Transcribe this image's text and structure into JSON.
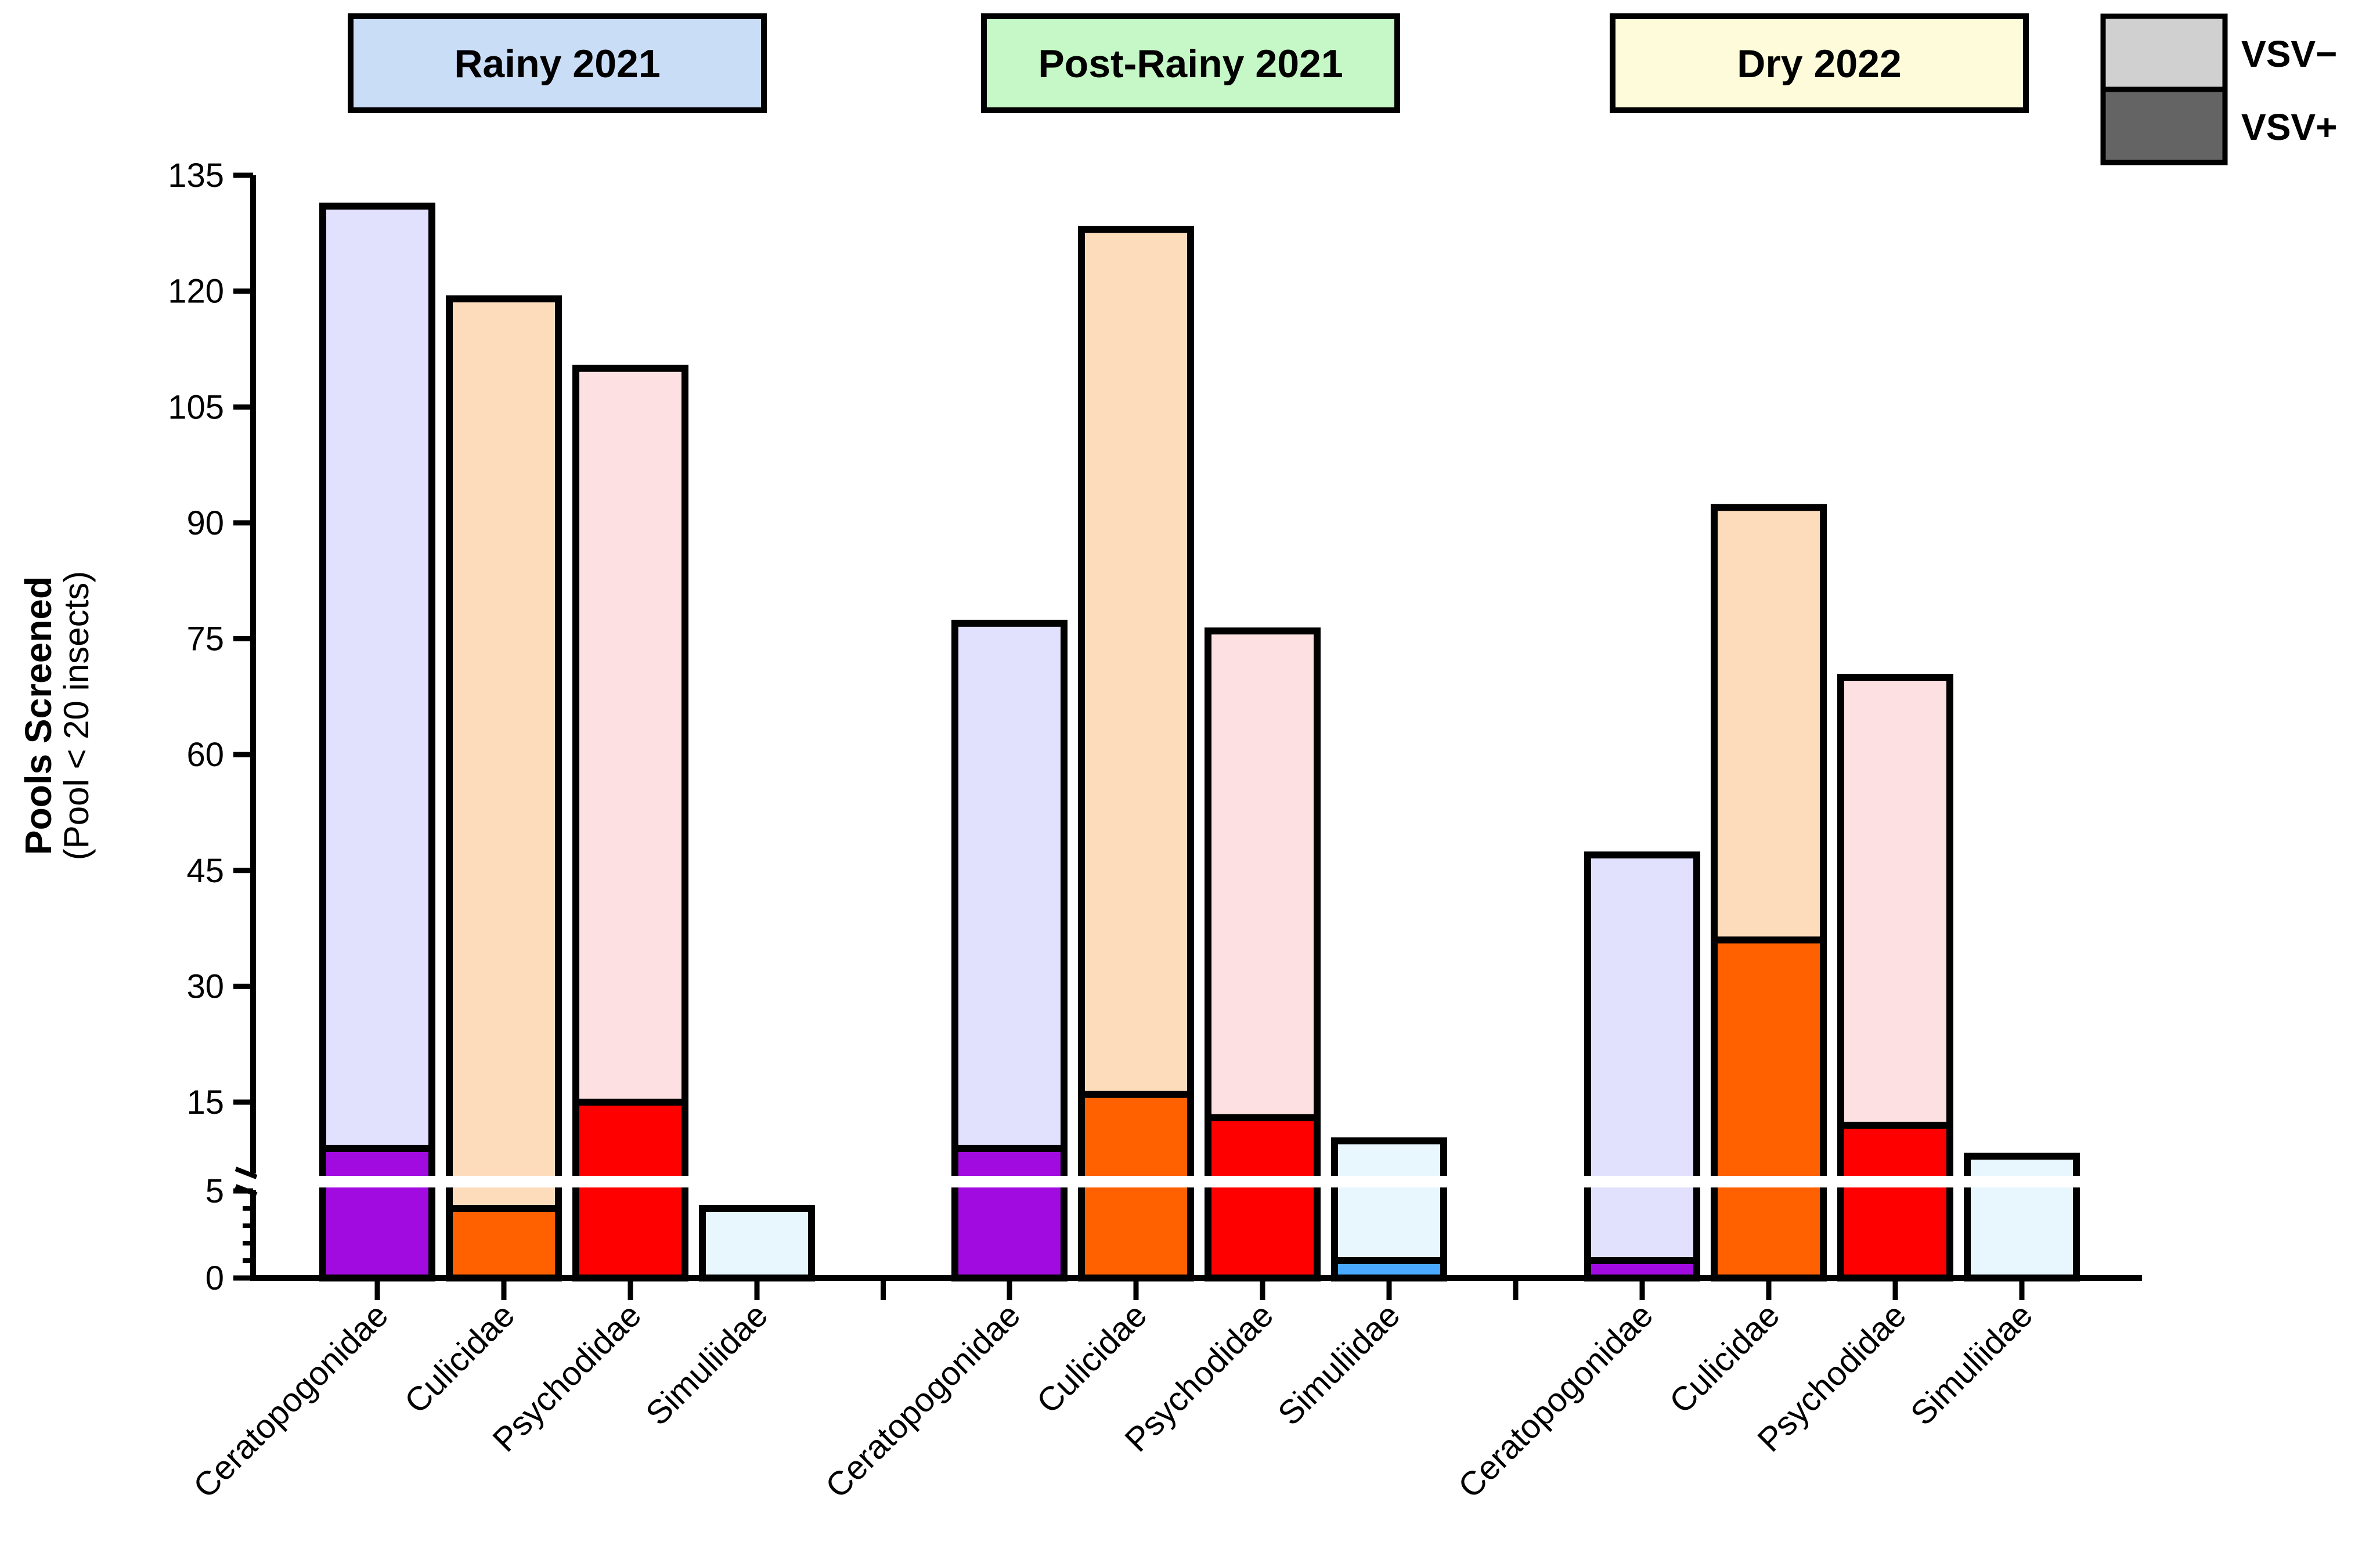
{
  "chart_data": {
    "type": "bar",
    "stacked": true,
    "ylabel": "Pools Screened",
    "ylabel_sub": "(Pool < 20 insects)",
    "y_ticks_upper": [
      15,
      30,
      45,
      60,
      75,
      90,
      105,
      120,
      135
    ],
    "y_ticks_lower": [
      0,
      5
    ],
    "ylim": [
      0,
      135
    ],
    "axis_break": {
      "lower_range": [
        0,
        5
      ],
      "upper_range": [
        5,
        135
      ]
    },
    "families": [
      "Ceratopogonidae",
      "Culicidae",
      "Psychodidae",
      "Simuliidae"
    ],
    "groups": [
      {
        "label": "Rainy 2021",
        "color": "#c9ddf7",
        "bars": [
          {
            "family": "Ceratopogonidae",
            "total": 131,
            "positive": 9
          },
          {
            "family": "Culicidae",
            "total": 119,
            "positive": 4
          },
          {
            "family": "Psychodidae",
            "total": 110,
            "positive": 15
          },
          {
            "family": "Simuliidae",
            "total": 4,
            "positive": 0
          }
        ]
      },
      {
        "label": "Post-Rainy 2021",
        "color": "#c6f7c6",
        "bars": [
          {
            "family": "Ceratopogonidae",
            "total": 77,
            "positive": 9
          },
          {
            "family": "Culicidae",
            "total": 128,
            "positive": 16
          },
          {
            "family": "Psychodidae",
            "total": 76,
            "positive": 13
          },
          {
            "family": "Simuliidae",
            "total": 10,
            "positive": 1
          }
        ]
      },
      {
        "label": "Dry 2022",
        "color": "#fdfbd9",
        "bars": [
          {
            "family": "Ceratopogonidae",
            "total": 47,
            "positive": 1
          },
          {
            "family": "Culicidae",
            "total": 92,
            "positive": 36
          },
          {
            "family": "Psychodidae",
            "total": 70,
            "positive": 12
          },
          {
            "family": "Simuliidae",
            "total": 8,
            "positive": 0
          }
        ]
      }
    ],
    "family_colors": {
      "Ceratopogonidae": {
        "positive": "#a20be0",
        "negative": "#e1e0fd"
      },
      "Culicidae": {
        "positive": "#ff6100",
        "negative": "#fddcbc"
      },
      "Psychodidae": {
        "positive": "#ff0000",
        "negative": "#fde0e2"
      },
      "Simuliidae": {
        "positive": "#4aa8ff",
        "negative": "#e8f7fe"
      }
    },
    "legend": [
      {
        "label": "VSV−",
        "color": "#d0d0d0"
      },
      {
        "label": "VSV+",
        "color": "#646464"
      }
    ]
  }
}
